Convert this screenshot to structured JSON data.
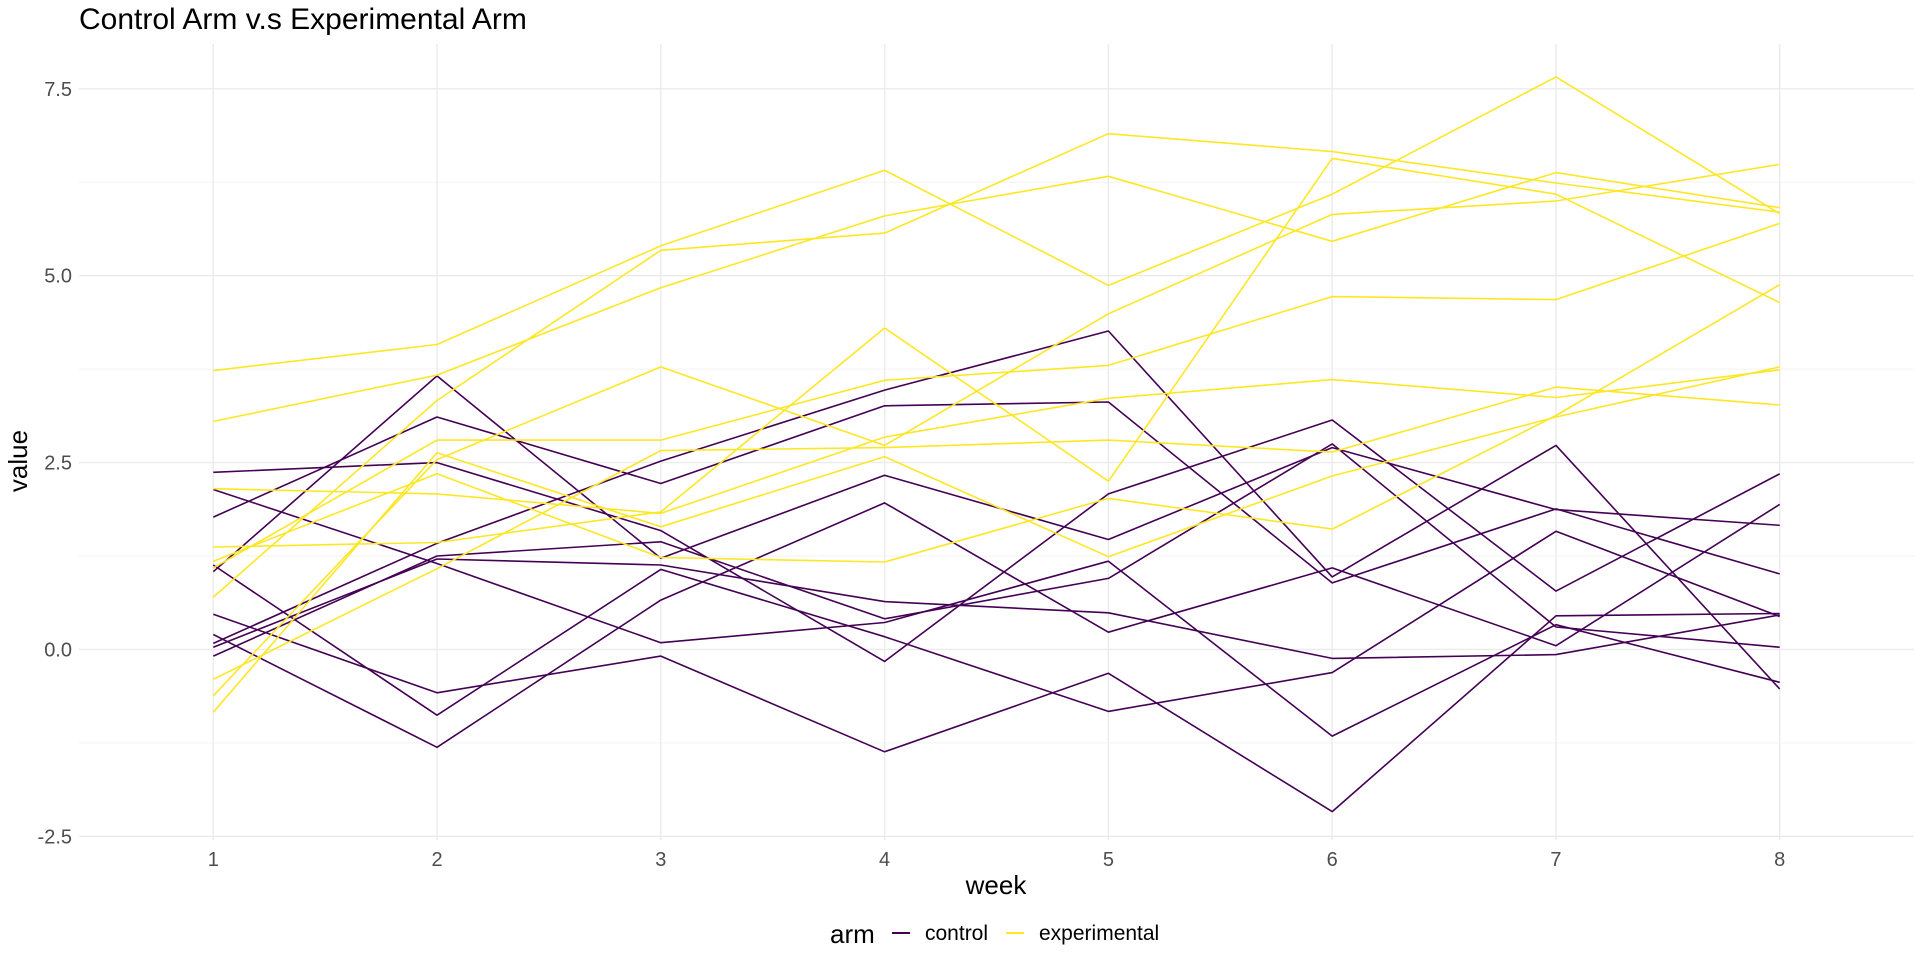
{
  "chart_data": {
    "type": "line",
    "title": "Control Arm v.s Experimental Arm",
    "xlabel": "week",
    "ylabel": "value",
    "x": [
      1,
      2,
      3,
      4,
      5,
      6,
      7,
      8
    ],
    "x_ticks": [
      "1",
      "2",
      "3",
      "4",
      "5",
      "6",
      "7",
      "8"
    ],
    "xlim": [
      0.4,
      8.6
    ],
    "y_ticks": [
      -2.5,
      0.0,
      2.5,
      5.0,
      7.5
    ],
    "y_tick_labels": [
      "-2.5",
      "0.0",
      "2.5",
      "5.0",
      "7.5"
    ],
    "ylim": [
      -2.55,
      8.1
    ],
    "grid": true,
    "legend": {
      "title": "arm",
      "position": "bottom",
      "entries": [
        {
          "label": "control",
          "color": "#440154"
        },
        {
          "label": "experimental",
          "color": "#FDE725"
        }
      ]
    },
    "series": [
      {
        "arm": "control",
        "color": "#440154",
        "values": [
          0.2,
          -1.31,
          0.66,
          1.96,
          0.23,
          1.09,
          0.05,
          1.94
        ]
      },
      {
        "arm": "control",
        "color": "#440154",
        "values": [
          1.13,
          -0.88,
          1.07,
          0.17,
          -0.83,
          -0.31,
          1.58,
          0.44
        ]
      },
      {
        "arm": "control",
        "color": "#440154",
        "values": [
          1.77,
          3.11,
          2.22,
          3.26,
          3.31,
          0.89,
          1.88,
          1.01
        ]
      },
      {
        "arm": "control",
        "color": "#440154",
        "values": [
          1.04,
          3.66,
          1.22,
          2.33,
          1.47,
          2.7,
          1.87,
          1.66
        ]
      },
      {
        "arm": "control",
        "color": "#440154",
        "values": [
          0.47,
          -0.58,
          -0.09,
          -1.37,
          -0.32,
          -2.17,
          0.45,
          0.48
        ]
      },
      {
        "arm": "control",
        "color": "#440154",
        "values": [
          2.37,
          2.5,
          1.59,
          -0.16,
          2.08,
          3.07,
          0.78,
          2.35
        ]
      },
      {
        "arm": "control",
        "color": "#440154",
        "values": [
          0.03,
          1.21,
          1.13,
          0.64,
          0.49,
          -0.12,
          -0.07,
          0.46
        ]
      },
      {
        "arm": "control",
        "color": "#440154",
        "values": [
          -0.09,
          1.25,
          1.44,
          0.41,
          0.95,
          2.75,
          0.3,
          0.03
        ]
      },
      {
        "arm": "control",
        "color": "#440154",
        "values": [
          2.14,
          1.15,
          0.09,
          0.36,
          1.18,
          -1.16,
          0.33,
          -0.44
        ]
      },
      {
        "arm": "control",
        "color": "#440154",
        "values": [
          0.08,
          1.42,
          2.52,
          3.47,
          4.26,
          0.97,
          2.73,
          -0.53
        ]
      },
      {
        "arm": "experimental",
        "color": "#FDE725",
        "values": [
          3.05,
          3.67,
          4.84,
          5.8,
          6.33,
          5.46,
          6.38,
          5.91
        ]
      },
      {
        "arm": "experimental",
        "color": "#FDE725",
        "values": [
          -0.84,
          2.63,
          1.64,
          2.58,
          1.24,
          2.32,
          3.11,
          3.78
        ]
      },
      {
        "arm": "experimental",
        "color": "#FDE725",
        "values": [
          2.15,
          2.08,
          1.82,
          2.84,
          3.36,
          3.61,
          3.37,
          3.74
        ]
      },
      {
        "arm": "experimental",
        "color": "#FDE725",
        "values": [
          -0.62,
          2.54,
          3.78,
          2.73,
          4.49,
          5.82,
          6.0,
          6.49
        ]
      },
      {
        "arm": "experimental",
        "color": "#FDE725",
        "values": [
          0.7,
          3.33,
          5.34,
          5.57,
          6.9,
          6.66,
          6.24,
          5.85
        ]
      },
      {
        "arm": "experimental",
        "color": "#FDE725",
        "values": [
          3.73,
          4.08,
          5.4,
          6.41,
          4.87,
          6.09,
          7.66,
          5.83
        ]
      },
      {
        "arm": "experimental",
        "color": "#FDE725",
        "values": [
          1.18,
          2.35,
          1.23,
          1.17,
          2.02,
          1.61,
          3.13,
          4.88
        ]
      },
      {
        "arm": "experimental",
        "color": "#FDE725",
        "values": [
          1.37,
          1.43,
          1.84,
          4.3,
          2.25,
          6.57,
          6.09,
          4.64
        ]
      },
      {
        "arm": "experimental",
        "color": "#FDE725",
        "values": [
          -0.4,
          1.08,
          2.66,
          2.7,
          2.8,
          2.64,
          3.51,
          3.27
        ]
      },
      {
        "arm": "experimental",
        "color": "#FDE725",
        "values": [
          1.09,
          2.8,
          2.8,
          3.6,
          3.8,
          4.72,
          4.68,
          5.7
        ]
      }
    ]
  }
}
